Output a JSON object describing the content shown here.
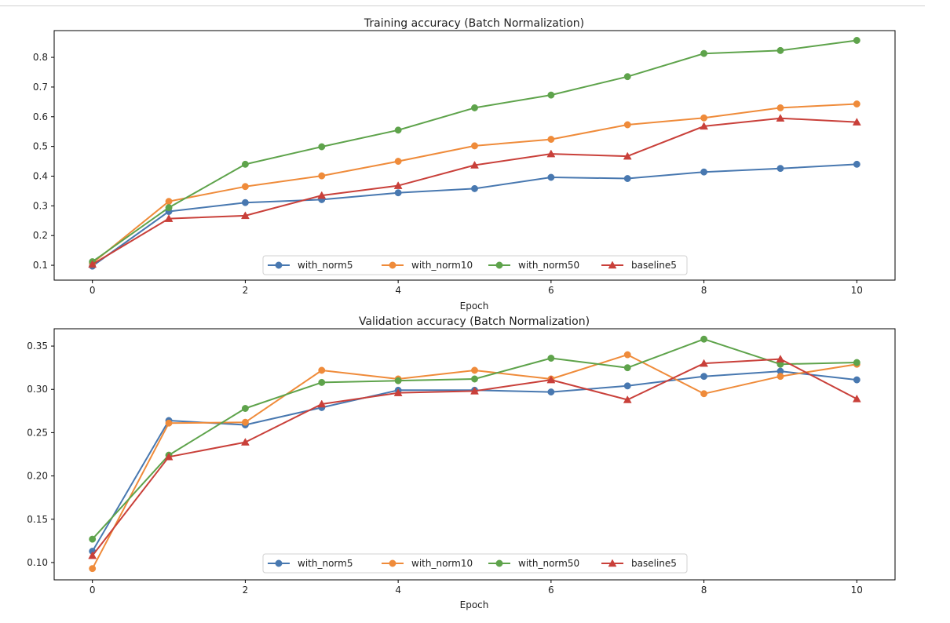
{
  "chart_data": [
    {
      "type": "line",
      "title": "Training accuracy (Batch Normalization)",
      "xlabel": "Epoch",
      "ylabel": "",
      "xlim": [
        -0.5,
        10.5
      ],
      "ylim": [
        0.05,
        0.89
      ],
      "xticks": [
        0,
        2,
        4,
        6,
        8,
        10
      ],
      "yticks": [
        0.1,
        0.2,
        0.3,
        0.4,
        0.5,
        0.6,
        0.7,
        0.8
      ],
      "ytick_labels": [
        "0.1",
        "0.2",
        "0.3",
        "0.4",
        "0.5",
        "0.6",
        "0.7",
        "0.8"
      ],
      "legend": "lower-center",
      "grid": false,
      "x": [
        0,
        1,
        2,
        3,
        4,
        5,
        6,
        7,
        8,
        9,
        10
      ],
      "series": [
        {
          "name": "with_norm5",
          "color": "#4878b0",
          "marker": "circle",
          "values": [
            0.097,
            0.281,
            0.311,
            0.321,
            0.344,
            0.358,
            0.396,
            0.392,
            0.414,
            0.426,
            0.44
          ]
        },
        {
          "name": "with_norm10",
          "color": "#ef8b3a",
          "marker": "circle",
          "values": [
            0.107,
            0.315,
            0.365,
            0.401,
            0.45,
            0.502,
            0.524,
            0.573,
            0.596,
            0.63,
            0.643
          ]
        },
        {
          "name": "with_norm50",
          "color": "#5ea34b",
          "marker": "circle",
          "values": [
            0.112,
            0.294,
            0.44,
            0.499,
            0.555,
            0.63,
            0.673,
            0.735,
            0.813,
            0.823,
            0.857
          ]
        },
        {
          "name": "baseline5",
          "color": "#c9403a",
          "marker": "triangle",
          "values": [
            0.103,
            0.257,
            0.267,
            0.335,
            0.368,
            0.437,
            0.475,
            0.467,
            0.568,
            0.595,
            0.582
          ]
        }
      ]
    },
    {
      "type": "line",
      "title": "Validation accuracy (Batch Normalization)",
      "xlabel": "Epoch",
      "ylabel": "",
      "xlim": [
        -0.5,
        10.5
      ],
      "ylim": [
        0.08,
        0.37
      ],
      "xticks": [
        0,
        2,
        4,
        6,
        8,
        10
      ],
      "yticks": [
        0.1,
        0.15,
        0.2,
        0.25,
        0.3,
        0.35
      ],
      "ytick_labels": [
        "0.10",
        "0.15",
        "0.20",
        "0.25",
        "0.30",
        "0.35"
      ],
      "legend": "lower-center",
      "grid": false,
      "x": [
        0,
        1,
        2,
        3,
        4,
        5,
        6,
        7,
        8,
        9,
        10
      ],
      "series": [
        {
          "name": "with_norm5",
          "color": "#4878b0",
          "marker": "circle",
          "values": [
            0.113,
            0.264,
            0.259,
            0.279,
            0.299,
            0.299,
            0.297,
            0.304,
            0.315,
            0.321,
            0.311
          ]
        },
        {
          "name": "with_norm10",
          "color": "#ef8b3a",
          "marker": "circle",
          "values": [
            0.093,
            0.261,
            0.262,
            0.322,
            0.312,
            0.322,
            0.312,
            0.34,
            0.295,
            0.315,
            0.329
          ]
        },
        {
          "name": "with_norm50",
          "color": "#5ea34b",
          "marker": "circle",
          "values": [
            0.127,
            0.224,
            0.278,
            0.308,
            0.31,
            0.312,
            0.336,
            0.325,
            0.358,
            0.329,
            0.331
          ]
        },
        {
          "name": "baseline5",
          "color": "#c9403a",
          "marker": "triangle",
          "values": [
            0.108,
            0.222,
            0.239,
            0.283,
            0.296,
            0.298,
            0.311,
            0.288,
            0.33,
            0.335,
            0.289
          ]
        }
      ]
    }
  ]
}
